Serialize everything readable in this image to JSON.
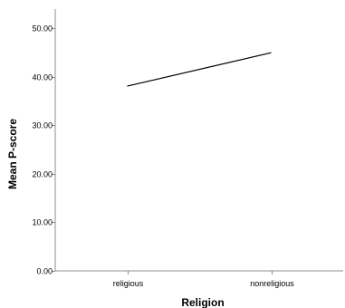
{
  "chart_data": {
    "type": "line",
    "categories": [
      "religious",
      "nonreligious"
    ],
    "series": [
      {
        "values": [
          38.1,
          45.0
        ]
      }
    ],
    "xlabel": "Religion",
    "ylabel": "Mean P-score",
    "ylim": [
      0,
      54
    ],
    "yticks": [
      "0.00",
      "10.00",
      "20.00",
      "30.00",
      "40.00",
      "50.00"
    ],
    "grid": false,
    "legend": "none",
    "line_color": "#000000",
    "axis_color": "#8c8c8c"
  }
}
